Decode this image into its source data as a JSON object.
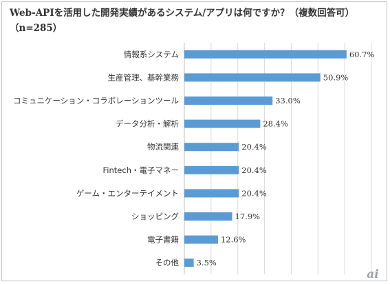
{
  "chart_data": {
    "type": "bar",
    "orientation": "horizontal",
    "title": "Web-APIを活用した開発実績があるシステム/アプリは何ですか？（複数回答可）（n=285）",
    "categories": [
      "情報系システム",
      "生産管理、基幹業務",
      "コミュニケーション・コラボレーションツール",
      "データ分析・解析",
      "物流関連",
      "Fintech・電子マネー",
      "ゲーム・エンターテイメント",
      "ショッピング",
      "電子書籍",
      "その他"
    ],
    "values": [
      60.7,
      50.9,
      33.0,
      28.4,
      20.4,
      20.4,
      20.4,
      17.9,
      12.6,
      3.5
    ],
    "value_labels": [
      "60.7%",
      "50.9%",
      "33.0%",
      "28.4%",
      "20.4%",
      "20.4%",
      "20.4%",
      "17.9%",
      "12.6%",
      "3.5%"
    ],
    "xlim": [
      0,
      70
    ],
    "grid": true,
    "bar_color": "#5b9bd5",
    "grid_color": "#d9d9d9"
  },
  "logo": {
    "text": "ai",
    "color": "#9aa0a6"
  }
}
